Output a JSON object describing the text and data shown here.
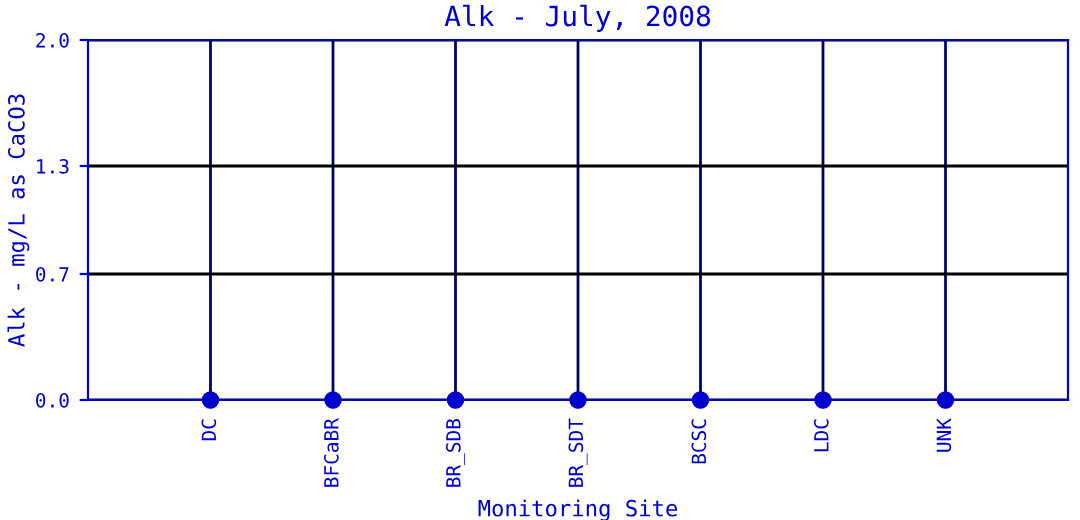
{
  "chart_data": {
    "type": "scatter",
    "title": "Alk - July, 2008",
    "xlabel": "Monitoring Site",
    "ylabel": "Alk - mg/L as CaCO3",
    "categories": [
      "DC",
      "BFCaBR",
      "BR_SDB",
      "BR_SDT",
      "BCSC",
      "LDC",
      "UNK"
    ],
    "series": [
      {
        "color": "#0000cc",
        "values": [
          0,
          0,
          0,
          0,
          0,
          0,
          0
        ]
      }
    ],
    "ylim": [
      0,
      2
    ],
    "yticks": [
      {
        "value": 0,
        "label": "0.0"
      },
      0.7,
      1.3,
      {
        "value": 2,
        "label": "2.0"
      }
    ],
    "grid": true,
    "marker": "circle"
  }
}
